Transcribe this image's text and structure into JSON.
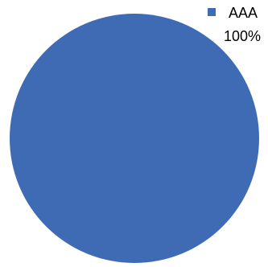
{
  "chart_data": {
    "type": "pie",
    "categories": [
      "AAA"
    ],
    "values": [
      100
    ],
    "data_labels": [
      "100%"
    ],
    "colors": [
      "#3F6BB5"
    ],
    "legend": "top-right"
  }
}
